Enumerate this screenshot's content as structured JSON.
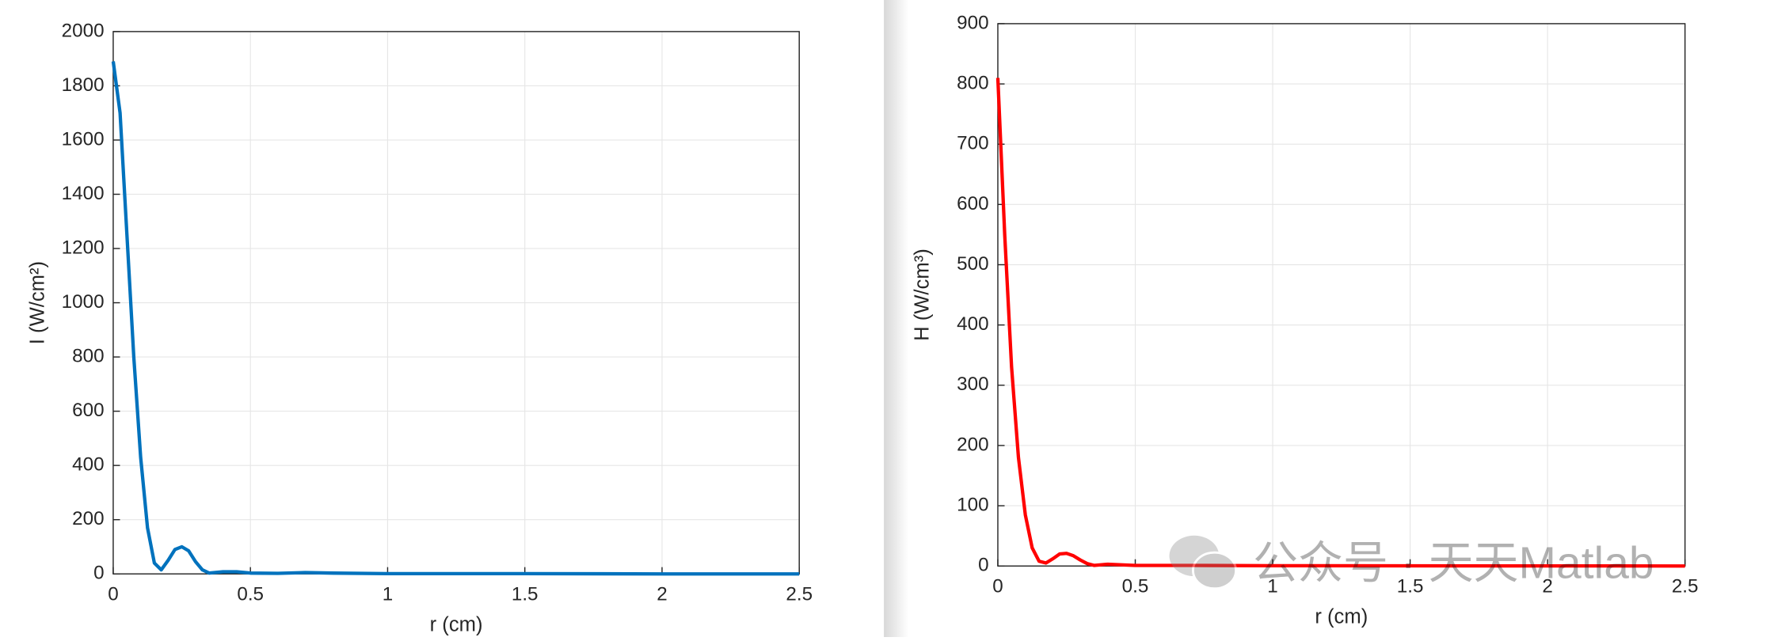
{
  "chart_data": [
    {
      "type": "line",
      "xlabel": "r (cm)",
      "ylabel": "I (W/cm²)",
      "xlim": [
        0,
        2.5
      ],
      "xticks": [
        0,
        0.5,
        1,
        1.5,
        2,
        2.5
      ],
      "ylim": [
        0,
        2000
      ],
      "yticks": [
        0,
        200,
        400,
        600,
        800,
        1000,
        1200,
        1400,
        1600,
        1800,
        2000
      ],
      "grid": true,
      "x": [
        0,
        0.025,
        0.05,
        0.075,
        0.1,
        0.125,
        0.15,
        0.175,
        0.2,
        0.225,
        0.25,
        0.275,
        0.3,
        0.325,
        0.35,
        0.4,
        0.45,
        0.5,
        0.6,
        0.7,
        0.8,
        1,
        1.5,
        2,
        2.5
      ],
      "series": [
        {
          "color": "#0072bd",
          "values": [
            1890,
            1700,
            1250,
            800,
            430,
            170,
            40,
            15,
            50,
            90,
            100,
            85,
            45,
            15,
            3,
            8,
            8,
            3,
            2,
            5,
            3,
            1,
            1,
            0,
            0
          ]
        }
      ]
    },
    {
      "type": "line",
      "xlabel": "r (cm)",
      "ylabel": "H (W/cm³)",
      "xlim": [
        0,
        2.5
      ],
      "xticks": [
        0,
        0.5,
        1,
        1.5,
        2,
        2.5
      ],
      "ylim": [
        0,
        900
      ],
      "yticks": [
        0,
        100,
        200,
        300,
        400,
        500,
        600,
        700,
        800,
        900
      ],
      "grid": true,
      "x": [
        0,
        0.025,
        0.05,
        0.075,
        0.1,
        0.125,
        0.15,
        0.175,
        0.2,
        0.225,
        0.25,
        0.275,
        0.3,
        0.325,
        0.35,
        0.4,
        0.5,
        0.7,
        1,
        2.5
      ],
      "series": [
        {
          "color": "#ff0000",
          "values": [
            810,
            550,
            330,
            180,
            85,
            30,
            8,
            5,
            12,
            20,
            21,
            17,
            10,
            4,
            1,
            3,
            1,
            1,
            0.5,
            0
          ]
        }
      ],
      "watermark": "公众号 · 天天Matlab"
    }
  ]
}
